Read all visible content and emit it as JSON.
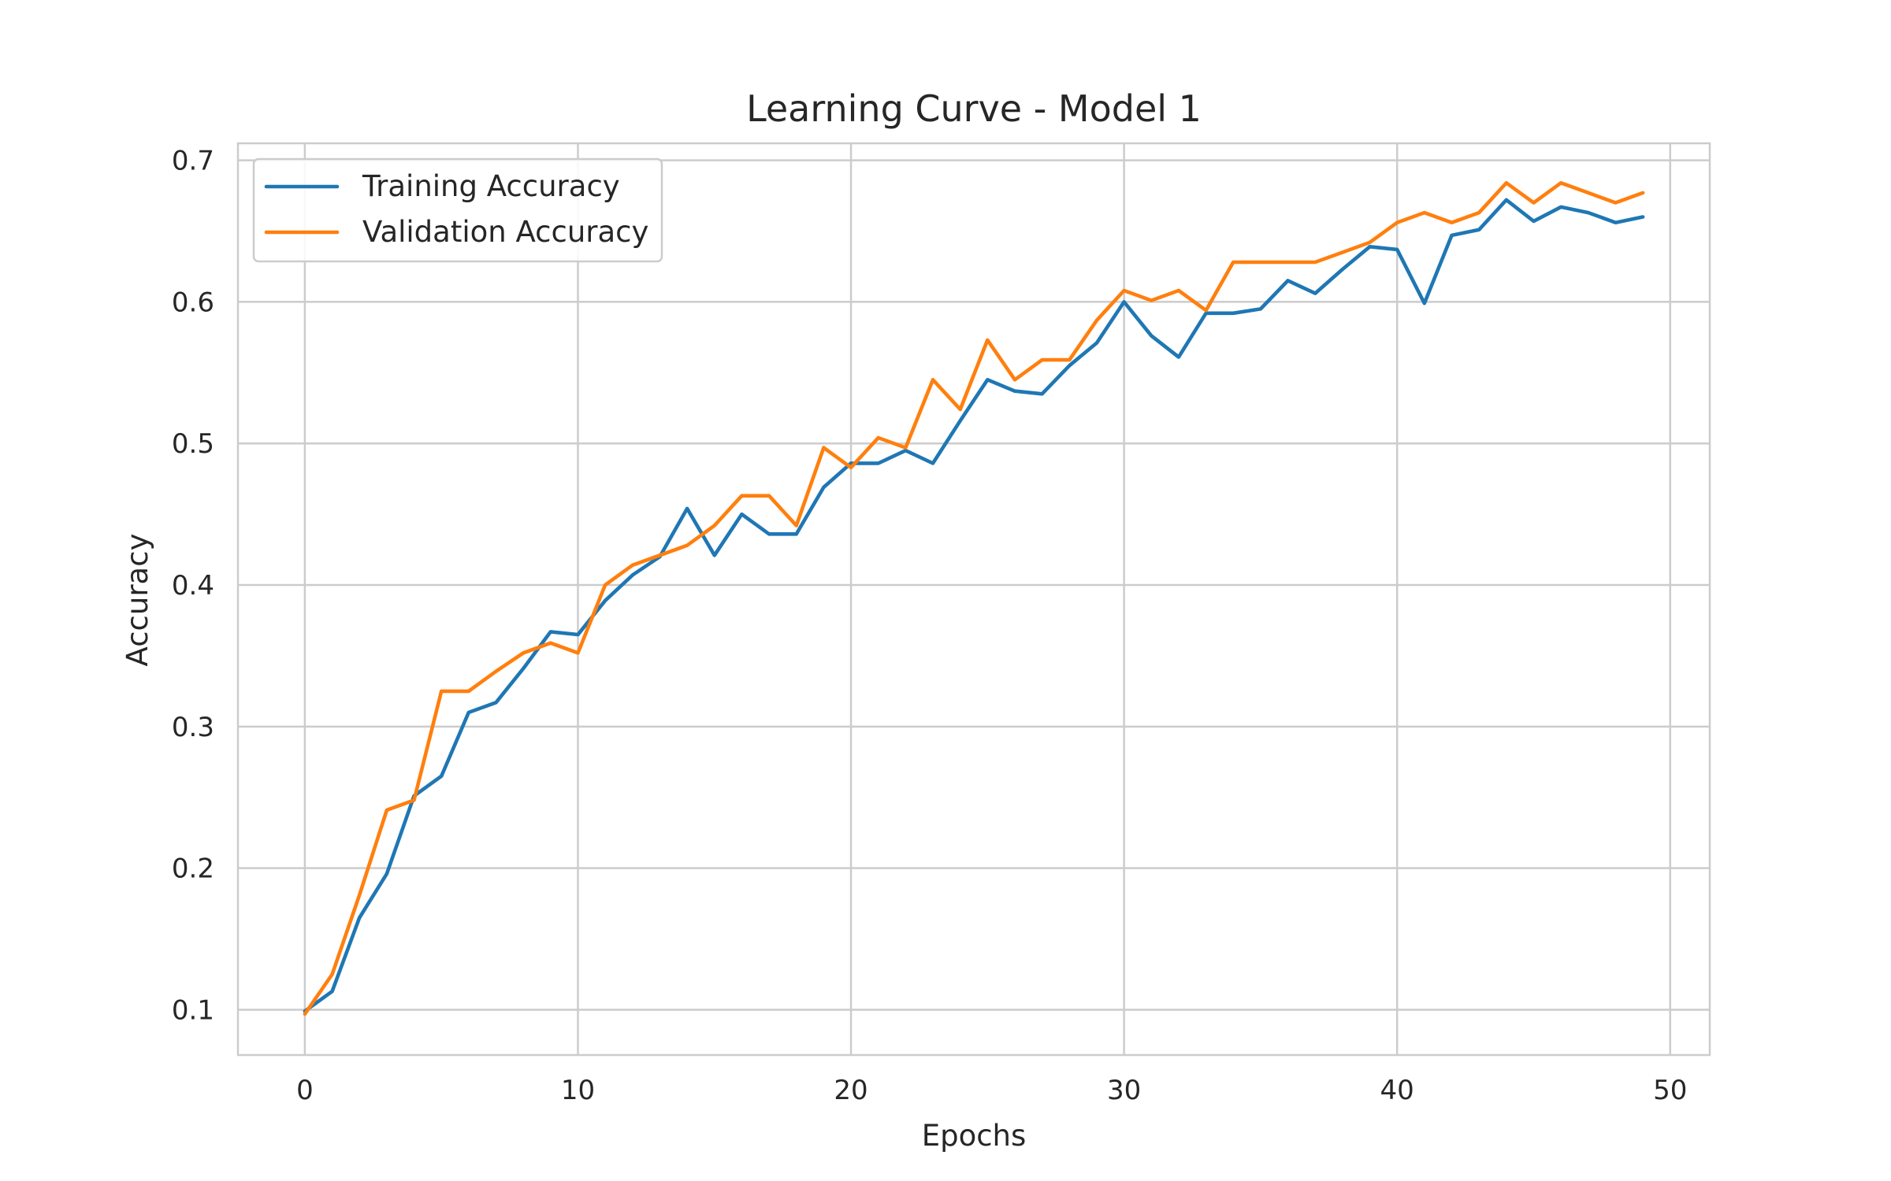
{
  "chart_data": {
    "type": "line",
    "title": "Learning Curve - Model 1",
    "xlabel": "Epochs",
    "ylabel": "Accuracy",
    "xlim": [
      -2.45,
      51.45
    ],
    "ylim": [
      0.068,
      0.712
    ],
    "xticks": [
      0,
      10,
      20,
      30,
      40,
      50
    ],
    "yticks": [
      0.1,
      0.2,
      0.3,
      0.4,
      0.5,
      0.6,
      0.7
    ],
    "grid": true,
    "legend_position": "top-left",
    "x": [
      0,
      1,
      2,
      3,
      4,
      5,
      6,
      7,
      8,
      9,
      10,
      11,
      12,
      13,
      14,
      15,
      16,
      17,
      18,
      19,
      20,
      21,
      22,
      23,
      24,
      25,
      26,
      27,
      28,
      29,
      30,
      31,
      32,
      33,
      34,
      35,
      36,
      37,
      38,
      39,
      40,
      41,
      42,
      43,
      44,
      45,
      46,
      47,
      48,
      49
    ],
    "series": [
      {
        "name": "Training Accuracy",
        "color": "#1f77b4",
        "values": [
          0.099,
          0.113,
          0.165,
          0.196,
          0.251,
          0.265,
          0.31,
          0.317,
          0.341,
          0.367,
          0.365,
          0.389,
          0.407,
          0.42,
          0.454,
          0.421,
          0.45,
          0.436,
          0.436,
          0.469,
          0.486,
          0.486,
          0.495,
          0.486,
          0.516,
          0.545,
          0.537,
          0.535,
          0.555,
          0.571,
          0.6,
          0.576,
          0.561,
          0.592,
          0.592,
          0.595,
          0.615,
          0.606,
          0.623,
          0.639,
          0.637,
          0.599,
          0.647,
          0.651,
          0.672,
          0.657,
          0.667,
          0.663,
          0.656,
          0.66
        ]
      },
      {
        "name": "Validation Accuracy",
        "color": "#ff7f0e",
        "values": [
          0.097,
          0.125,
          0.181,
          0.241,
          0.248,
          0.325,
          0.325,
          0.339,
          0.352,
          0.359,
          0.352,
          0.4,
          0.414,
          0.421,
          0.428,
          0.442,
          0.463,
          0.463,
          0.442,
          0.497,
          0.483,
          0.504,
          0.497,
          0.545,
          0.524,
          0.573,
          0.545,
          0.559,
          0.559,
          0.587,
          0.608,
          0.601,
          0.608,
          0.594,
          0.628,
          0.628,
          0.628,
          0.628,
          0.635,
          0.642,
          0.656,
          0.663,
          0.656,
          0.663,
          0.684,
          0.67,
          0.684,
          0.677,
          0.67,
          0.677
        ]
      }
    ]
  }
}
